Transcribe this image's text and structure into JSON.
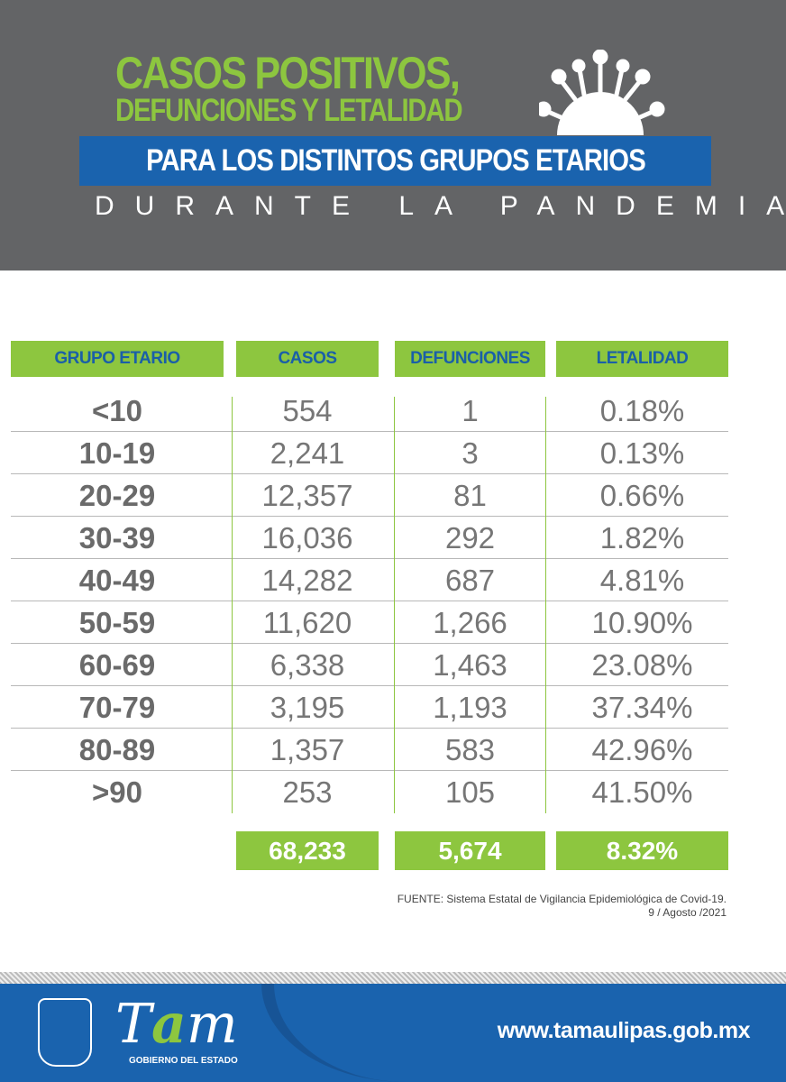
{
  "header": {
    "title_line1": "CASOS POSITIVOS,",
    "title_line2": "DEFUNCIONES Y LETALIDAD",
    "band": "PARA LOS DISTINTOS GRUPOS ETARIOS",
    "subtitle": "DURANTE LA PANDEMIA"
  },
  "table": {
    "columns": [
      "GRUPO ETARIO",
      "CASOS",
      "DEFUNCIONES",
      "LETALIDAD"
    ],
    "rows": [
      [
        "<10",
        "554",
        "1",
        "0.18%"
      ],
      [
        "10-19",
        "2,241",
        "3",
        "0.13%"
      ],
      [
        "20-29",
        "12,357",
        "81",
        "0.66%"
      ],
      [
        "30-39",
        "16,036",
        "292",
        "1.82%"
      ],
      [
        "40-49",
        "14,282",
        "687",
        "4.81%"
      ],
      [
        "50-59",
        "11,620",
        "1,266",
        "10.90%"
      ],
      [
        "60-69",
        "6,338",
        "1,463",
        "23.08%"
      ],
      [
        "70-79",
        "3,195",
        "1,193",
        "37.34%"
      ],
      [
        "80-89",
        "1,357",
        "583",
        "42.96%"
      ],
      [
        ">90",
        "253",
        "105",
        "41.50%"
      ]
    ],
    "totals": [
      "68,233",
      "5,674",
      "8.32%"
    ]
  },
  "source": {
    "line1": "FUENTE: Sistema Estatal de Vigilancia Epidemiológica de Covid-19.",
    "line2": "9 / Agosto /2021"
  },
  "footer": {
    "logo_text": "Tam",
    "gobierno": "GOBIERNO DEL ESTADO",
    "url": "www.tamaulipas.gob.mx"
  },
  "colors": {
    "green": "#8dc63f",
    "blue": "#1a63ae",
    "gray": "#636466"
  }
}
